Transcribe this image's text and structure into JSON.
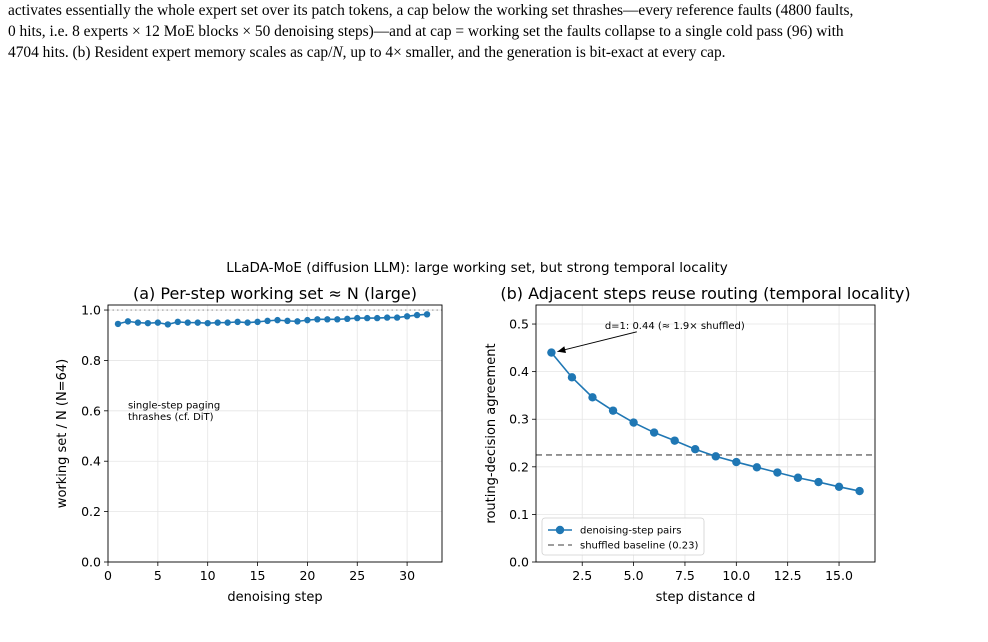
{
  "caption": {
    "line1": "activates essentially the whole expert set over its patch tokens, a cap below the working set thrashes—every reference faults (4800 faults,",
    "line2": "0 hits, i.e. 8 experts × 12 MoE blocks × 50 denoising steps)—and at cap = working set the faults collapse to a single cold pass (96) with",
    "line3_a": "4704 hits. (b) Resident expert memory scales as cap/",
    "line3_var": "N",
    "line3_b": ", up to 4× smaller, and the generation is bit-exact at every cap."
  },
  "figure": {
    "suptitle": "LLaDA-MoE (diffusion LLM): large working set, but strong temporal locality"
  },
  "colors": {
    "series": "#1f77b4",
    "baseline": "#7f7f7f",
    "grid": "#e5e5e5"
  },
  "chart_data": [
    {
      "type": "line",
      "title": "(a) Per-step working set ≈ N (large)",
      "xlabel": "denoising step",
      "ylabel": "working set / N  (N=64)",
      "xlim": [
        0,
        33.5
      ],
      "ylim": [
        0.0,
        1.02
      ],
      "xticks": [
        0,
        5,
        10,
        15,
        20,
        25,
        30
      ],
      "xtick_labels": [
        "0",
        "5",
        "10",
        "15",
        "20",
        "25",
        "30"
      ],
      "yticks": [
        0.0,
        0.2,
        0.4,
        0.6,
        0.8,
        1.0
      ],
      "ytick_labels": [
        "0.0",
        "0.2",
        "0.4",
        "0.6",
        "0.8",
        "1.0"
      ],
      "grid": true,
      "reference_line": {
        "y": 1.0,
        "style": "dotted"
      },
      "annotation": {
        "lines": [
          "single-step paging",
          "thrashes (cf. DiT)"
        ],
        "x": 2,
        "y": 0.61
      },
      "x": [
        1,
        2,
        3,
        4,
        5,
        6,
        7,
        8,
        9,
        10,
        11,
        12,
        13,
        14,
        15,
        16,
        17,
        18,
        19,
        20,
        21,
        22,
        23,
        24,
        25,
        26,
        27,
        28,
        29,
        30,
        31,
        32
      ],
      "y": [
        0.945,
        0.955,
        0.95,
        0.948,
        0.95,
        0.943,
        0.953,
        0.95,
        0.95,
        0.948,
        0.95,
        0.95,
        0.953,
        0.95,
        0.953,
        0.957,
        0.96,
        0.957,
        0.955,
        0.96,
        0.963,
        0.963,
        0.963,
        0.965,
        0.968,
        0.968,
        0.968,
        0.97,
        0.97,
        0.975,
        0.98,
        0.983
      ]
    },
    {
      "type": "line",
      "title": "(b) Adjacent steps reuse routing (temporal locality)",
      "xlabel": "step distance d",
      "ylabel": "routing-decision agreement",
      "xlim": [
        0.25,
        16.75
      ],
      "ylim": [
        0.0,
        0.54
      ],
      "xticks": [
        2.5,
        5.0,
        7.5,
        10.0,
        12.5,
        15.0
      ],
      "xtick_labels": [
        "2.5",
        "5.0",
        "7.5",
        "10.0",
        "12.5",
        "15.0"
      ],
      "yticks": [
        0.0,
        0.1,
        0.2,
        0.3,
        0.4,
        0.5
      ],
      "ytick_labels": [
        "0.0",
        "0.1",
        "0.2",
        "0.3",
        "0.4",
        "0.5"
      ],
      "grid": true,
      "legend_position": "lower-left",
      "series": [
        {
          "name": "denoising-step pairs",
          "x": [
            1,
            2,
            3,
            4,
            5,
            6,
            7,
            8,
            9,
            10,
            11,
            12,
            13,
            14,
            15,
            16
          ],
          "y": [
            0.44,
            0.388,
            0.346,
            0.318,
            0.293,
            0.272,
            0.255,
            0.237,
            0.222,
            0.21,
            0.199,
            0.188,
            0.177,
            0.168,
            0.158,
            0.149
          ]
        }
      ],
      "baseline": {
        "name": "shuffled baseline (0.23)",
        "y": 0.225,
        "style": "dashed"
      },
      "annotation": {
        "text": "d=1: 0.44  (≈ 1.9× shuffled)",
        "point": [
          1,
          0.44
        ],
        "text_at": [
          3.6,
          0.49
        ]
      }
    }
  ]
}
